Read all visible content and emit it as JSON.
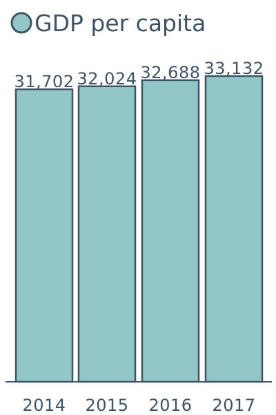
{
  "chart_data": {
    "type": "bar",
    "categories": [
      "2014",
      "2015",
      "2016",
      "2017"
    ],
    "series": [
      {
        "name": "GDP per capita",
        "values": [
          31702,
          32024,
          32688,
          33132
        ],
        "value_labels": [
          "31,702",
          "32,024",
          "32,688",
          "33,132"
        ]
      }
    ],
    "title": "",
    "xlabel": "",
    "ylabel": "",
    "ylim": [
      0,
      33132
    ],
    "grid": false,
    "legend": "top-left",
    "colors": {
      "bar_fill": "#93c7c7",
      "bar_stroke": "#3f5366",
      "text": "#3f5366",
      "axis": "#3f5366"
    }
  }
}
